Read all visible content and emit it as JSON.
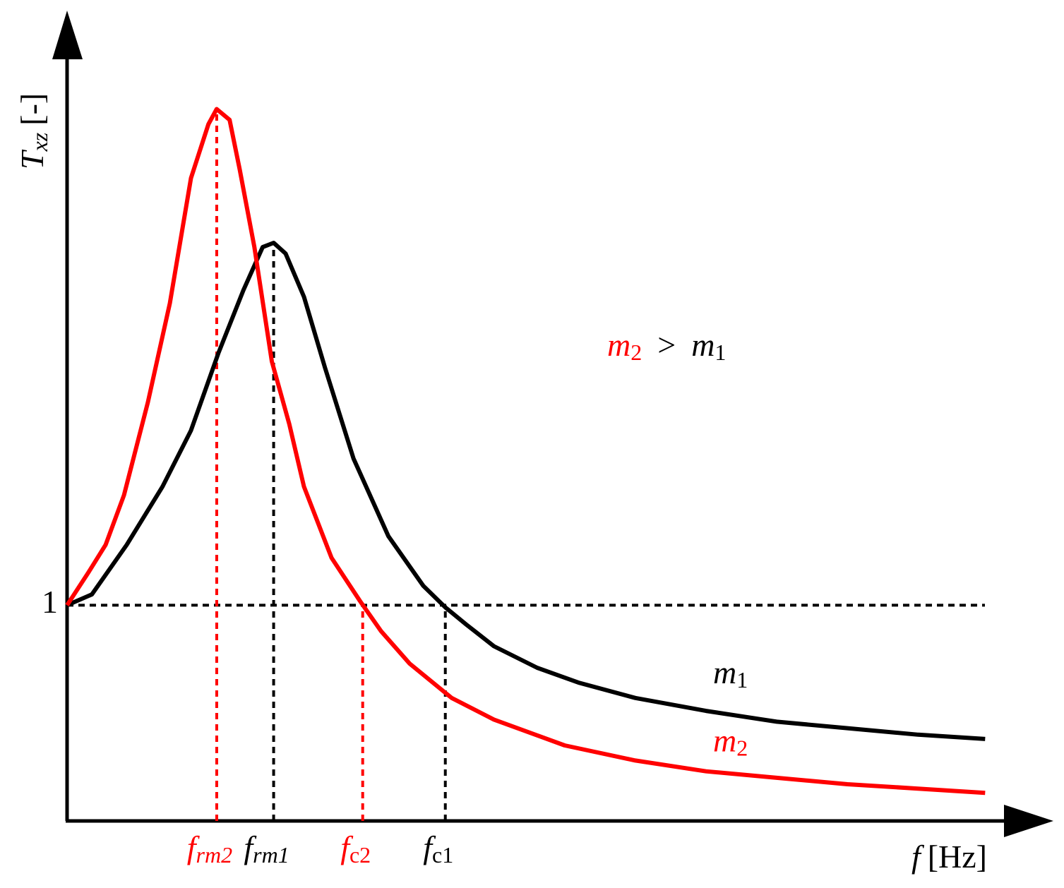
{
  "chart_data": {
    "type": "line",
    "x_label": "f",
    "x_label_unit": "[Hz]",
    "y_label": "T",
    "y_label_sub": "xz",
    "y_label_unit": "[-]",
    "xlim": [
      0,
      10.19
    ],
    "ylim": [
      0,
      3.74
    ],
    "yticks": [
      1
    ],
    "reference_line_dashed": true,
    "series": [
      {
        "name": "m",
        "subscript": "1",
        "color": "#000000",
        "x": [
          0,
          0.27,
          0.65,
          1.04,
          1.35,
          1.65,
          1.92,
          2.13,
          2.25,
          2.38,
          2.58,
          2.81,
          3.12,
          3.5,
          3.88,
          4.12,
          4.35,
          4.65,
          5.12,
          5.58,
          6.19,
          6.96,
          7.73,
          8.5,
          9.27,
          10
        ],
        "values": [
          1.0,
          1.05,
          1.28,
          1.55,
          1.81,
          2.17,
          2.46,
          2.66,
          2.68,
          2.63,
          2.43,
          2.1,
          1.68,
          1.32,
          1.09,
          0.99,
          0.91,
          0.81,
          0.71,
          0.64,
          0.57,
          0.51,
          0.46,
          0.43,
          0.4,
          0.38
        ]
      },
      {
        "name": "m",
        "subscript": "2",
        "color": "#ff0000",
        "x": [
          0,
          0.23,
          0.42,
          0.62,
          0.88,
          1.12,
          1.35,
          1.54,
          1.63,
          1.77,
          1.88,
          2.04,
          2.23,
          2.42,
          2.58,
          2.88,
          3.19,
          3.42,
          3.73,
          4.19,
          4.65,
          5.42,
          6.19,
          6.96,
          7.73,
          8.5,
          9.27,
          10
        ],
        "values": [
          1.0,
          1.15,
          1.28,
          1.51,
          1.94,
          2.4,
          2.98,
          3.23,
          3.3,
          3.25,
          3.02,
          2.66,
          2.13,
          1.84,
          1.55,
          1.22,
          1.02,
          0.88,
          0.73,
          0.57,
          0.47,
          0.35,
          0.28,
          0.23,
          0.2,
          0.17,
          0.15,
          0.13
        ]
      }
    ],
    "markers": [
      {
        "x": 1.63,
        "y": 3.3,
        "label": "f",
        "subscript": "rm2",
        "color": "#ff0000"
      },
      {
        "x": 2.25,
        "y": 2.68,
        "label": "f",
        "subscript": "rm1",
        "color": "#000000"
      },
      {
        "x": 3.22,
        "y": 1.0,
        "label": "f",
        "subscript": "c2",
        "color": "#ff0000"
      },
      {
        "x": 4.12,
        "y": 1.0,
        "label": "f",
        "subscript": "c1",
        "color": "#000000"
      }
    ],
    "annotation": [
      {
        "text": "m",
        "sub": "2",
        "color": "#ff0000"
      },
      {
        "text": ">",
        "color": "#000000"
      },
      {
        "text": "m",
        "sub": "1",
        "color": "#000000"
      }
    ]
  }
}
